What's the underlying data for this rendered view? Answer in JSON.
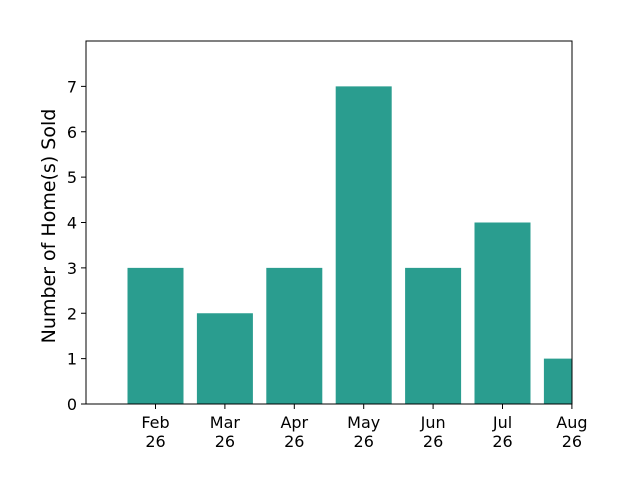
{
  "chart_data": {
    "type": "bar",
    "categories": [
      "Feb 26",
      "Mar 26",
      "Apr 26",
      "May 26",
      "Jun 26",
      "Jul 26",
      "Aug 26"
    ],
    "category_lines": [
      [
        "Feb",
        "26"
      ],
      [
        "Mar",
        "26"
      ],
      [
        "Apr",
        "26"
      ],
      [
        "May",
        "26"
      ],
      [
        "Jun",
        "26"
      ],
      [
        "Jul",
        "26"
      ],
      [
        "Aug",
        "26"
      ]
    ],
    "values": [
      3,
      2,
      3,
      7,
      3,
      4,
      1
    ],
    "xlabel": "",
    "ylabel": "Number of Home(s) Sold",
    "ylim": [
      0,
      8
    ],
    "yticks": [
      0,
      1,
      2,
      3,
      4,
      5,
      6,
      7
    ],
    "bar_color": "#2a9d8f",
    "grid": false,
    "legend": "none"
  }
}
